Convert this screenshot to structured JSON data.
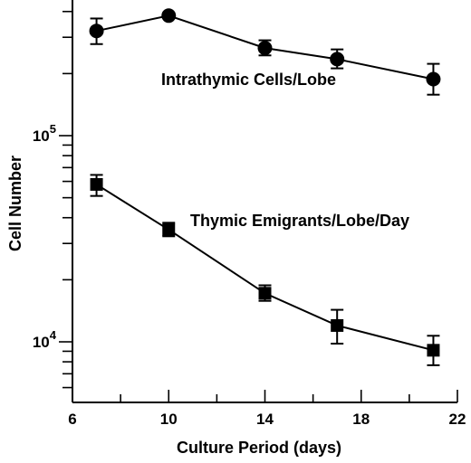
{
  "chart_data": {
    "type": "line",
    "title": "",
    "xlabel": "Culture Period (days)",
    "ylabel": "Cell Number",
    "xscale": "linear",
    "yscale": "log",
    "xlim": [
      6,
      22
    ],
    "ylim": [
      5000,
      400000
    ],
    "grid": false,
    "legend": "none",
    "x_ticks": [
      6,
      10,
      14,
      18,
      22
    ],
    "x_tick_labels": [
      "6",
      "10",
      "14",
      "18",
      "22"
    ],
    "y_labeled_ticks": [
      {
        "value": 10000,
        "base": "10",
        "exp": "4"
      },
      {
        "value": 100000,
        "base": "10",
        "exp": "5"
      }
    ],
    "series": [
      {
        "name": "Intrathymic Cells/Lobe",
        "marker": "circle",
        "x": [
          7,
          10,
          14,
          17,
          21
        ],
        "y": [
          322000,
          382000,
          266000,
          235000,
          188000
        ],
        "y_err_low": [
          278000,
          382000,
          245000,
          212000,
          158000
        ],
        "y_err_high": [
          370000,
          382000,
          290000,
          262000,
          223000
        ]
      },
      {
        "name": "Thymic Emigrants/Lobe/Day",
        "marker": "square",
        "x": [
          7,
          10,
          14,
          17,
          21
        ],
        "y": [
          58000,
          35000,
          17200,
          12000,
          9100
        ],
        "y_err_low": [
          51000,
          32500,
          15800,
          9800,
          7700
        ],
        "y_err_high": [
          64500,
          37800,
          18800,
          14300,
          10700
        ]
      }
    ]
  }
}
